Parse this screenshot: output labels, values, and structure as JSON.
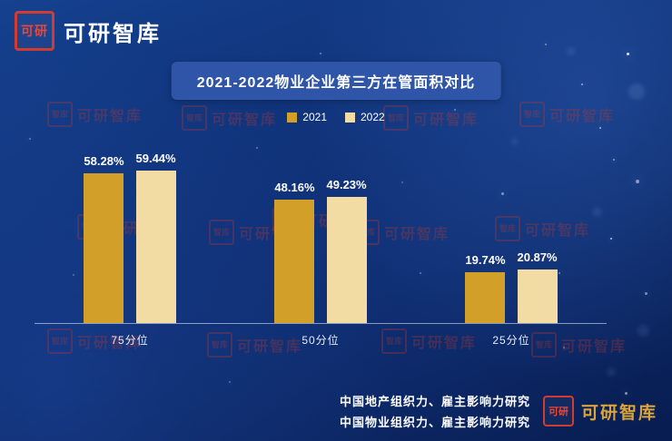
{
  "brand": {
    "seal_text": "可研",
    "logo_text": "可研智库"
  },
  "title_banner": "2021-2022物业企业第三方在管面积对比",
  "legend": [
    {
      "label": "2021",
      "color": "#d2a029"
    },
    {
      "label": "2022",
      "color": "#f3dca4"
    }
  ],
  "chart_data": {
    "type": "bar",
    "title": "2021-2022物业企业第三方在管面积对比",
    "categories": [
      "75分位",
      "50分位",
      "25分位"
    ],
    "series": [
      {
        "name": "2021",
        "color": "#d2a029",
        "values": [
          58.28,
          48.16,
          19.74
        ]
      },
      {
        "name": "2022",
        "color": "#f3dca4",
        "values": [
          59.44,
          49.23,
          20.87
        ]
      }
    ],
    "value_labels": [
      [
        "58.28%",
        "59.44%"
      ],
      [
        "48.16%",
        "49.23%"
      ],
      [
        "19.74%",
        "20.87%"
      ]
    ],
    "xlabel": "",
    "ylabel": "",
    "ylim": [
      0,
      65
    ],
    "grid": false,
    "legend_position": "top-center"
  },
  "footer": {
    "line1": "中国地产组织力、雇主影响力研究",
    "line2": "中国物业组织力、雇主影响力研究",
    "seal_text": "可研",
    "logo_text": "可研智库"
  },
  "watermark": {
    "text": "可研智库",
    "seal_text": "智库"
  }
}
